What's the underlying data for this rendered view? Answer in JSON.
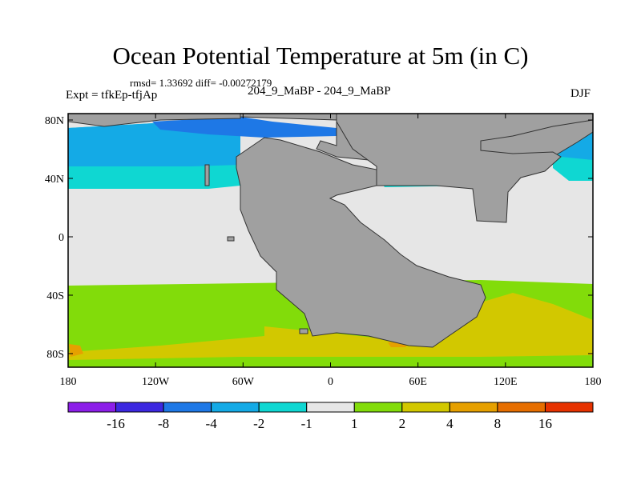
{
  "title": "Ocean Potential Temperature at 5m (in C)",
  "stats": "rmsd= 1.33692 diff= -0.00272179",
  "expt": "Expt = tfkEp-tfjAp",
  "case": "204_9_MaBP - 204_9_MaBP",
  "season": "DJF",
  "x_ticks": [
    {
      "label": "180",
      "lon": -180
    },
    {
      "label": "120W",
      "lon": -120
    },
    {
      "label": "60W",
      "lon": -60
    },
    {
      "label": "0",
      "lon": 0
    },
    {
      "label": "60E",
      "lon": 60
    },
    {
      "label": "120E",
      "lon": 120
    },
    {
      "label": "180",
      "lon": 180
    }
  ],
  "y_ticks": [
    {
      "label": "80N",
      "lat": 80
    },
    {
      "label": "40N",
      "lat": 40
    },
    {
      "label": "0",
      "lat": 0
    },
    {
      "label": "40S",
      "lat": -40
    },
    {
      "label": "80S",
      "lat": -80
    }
  ],
  "colorbar": {
    "levels": [
      "-16",
      "-8",
      "-4",
      "-2",
      "-1",
      "1",
      "2",
      "4",
      "8",
      "16"
    ],
    "colors": [
      "#8c1ee8",
      "#3c28e0",
      "#1e78e6",
      "#14aae6",
      "#0fd7d2",
      "#e6e6e6",
      "#82dc0a",
      "#d2c800",
      "#e6a000",
      "#e66e00",
      "#e63200"
    ]
  },
  "land_color": "#a0a0a0"
}
